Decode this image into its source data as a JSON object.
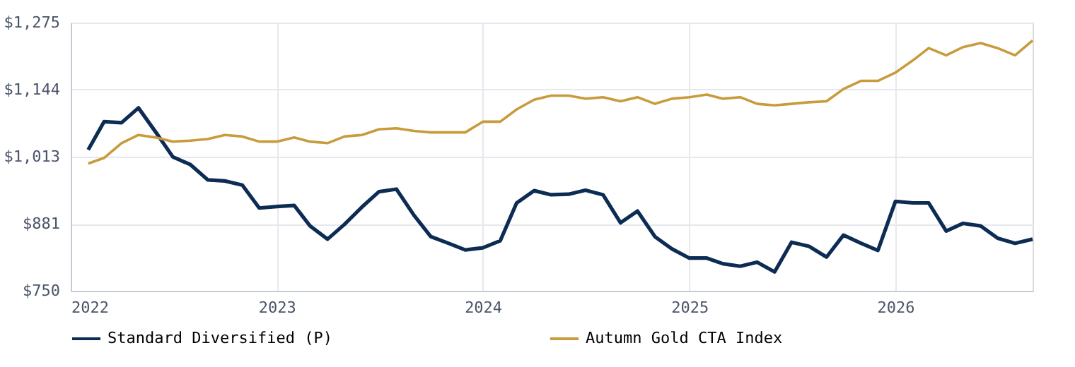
{
  "chart_data": {
    "type": "line",
    "x": [
      "2022-02",
      "2022-03",
      "2022-04",
      "2022-05",
      "2022-06",
      "2022-07",
      "2022-08",
      "2022-09",
      "2022-10",
      "2022-11",
      "2022-12",
      "2023-01",
      "2023-02",
      "2023-03",
      "2023-04",
      "2023-05",
      "2023-06",
      "2023-07",
      "2023-08",
      "2023-09",
      "2023-10",
      "2023-11",
      "2023-12",
      "2024-01",
      "2024-02",
      "2024-03",
      "2024-04",
      "2024-05",
      "2024-06",
      "2024-07",
      "2024-08",
      "2024-09",
      "2024-10",
      "2024-11",
      "2024-12",
      "2025-01",
      "2025-02",
      "2025-03",
      "2025-04",
      "2025-05",
      "2025-06",
      "2025-07",
      "2025-08",
      "2025-09",
      "2025-10",
      "2025-11",
      "2025-12",
      "2026-01",
      "2026-02",
      "2026-03",
      "2026-04",
      "2026-05",
      "2026-06",
      "2026-07",
      "2026-08",
      "2026-09"
    ],
    "series": [
      {
        "name": "Standard Diversified (P)",
        "color": "#0d2c54",
        "values": [
          1026,
          1081,
          1079,
          1108,
          1060,
          1012,
          997,
          967,
          965,
          957,
          912,
          915,
          917,
          877,
          851,
          880,
          914,
          944,
          949,
          898,
          856,
          843,
          830,
          834,
          848,
          922,
          946,
          938,
          939,
          947,
          938,
          883,
          906,
          856,
          832,
          814,
          814,
          803,
          798,
          806,
          787,
          845,
          837,
          816,
          859,
          843,
          829,
          925,
          922,
          922,
          867,
          882,
          877,
          853,
          843,
          851
        ]
      },
      {
        "name": "Autumn Gold CTA Index",
        "color": "#c89b3c",
        "values": [
          999,
          1010,
          1039,
          1055,
          1050,
          1042,
          1044,
          1047,
          1055,
          1052,
          1042,
          1042,
          1050,
          1042,
          1039,
          1052,
          1055,
          1066,
          1068,
          1063,
          1060,
          1060,
          1060,
          1081,
          1081,
          1105,
          1124,
          1132,
          1132,
          1126,
          1129,
          1121,
          1129,
          1116,
          1126,
          1129,
          1134,
          1126,
          1129,
          1116,
          1113,
          1116,
          1119,
          1121,
          1145,
          1161,
          1161,
          1177,
          1201,
          1225,
          1211,
          1227,
          1235,
          1225,
          1211,
          1240
        ]
      }
    ],
    "xlim": [
      "2022-01",
      "2026-09"
    ],
    "xticks": [
      {
        "value": "2022",
        "label": "2022"
      },
      {
        "value": "2023",
        "label": "2023"
      },
      {
        "value": "2024",
        "label": "2024"
      },
      {
        "value": "2025",
        "label": "2025"
      },
      {
        "value": "2026",
        "label": "2026"
      }
    ],
    "ylim": [
      750,
      1275
    ],
    "yticks": [
      {
        "value": 750,
        "label": "$750"
      },
      {
        "value": 881,
        "label": "$881"
      },
      {
        "value": 1013,
        "label": "$1,013"
      },
      {
        "value": 1144,
        "label": "$1,144"
      },
      {
        "value": 1275,
        "label": "$1,275"
      }
    ],
    "grid": true,
    "legend": "bottom",
    "marker": "none",
    "line_style": "solid"
  }
}
